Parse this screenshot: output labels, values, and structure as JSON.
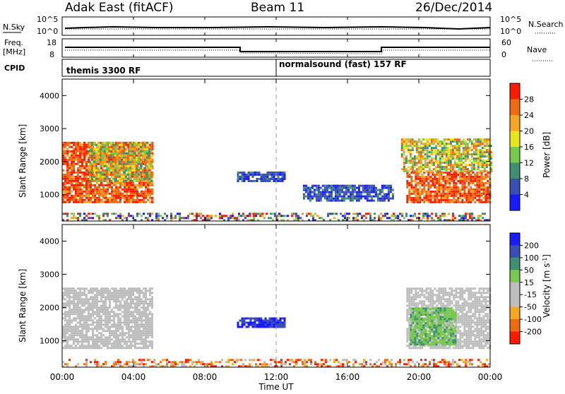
{
  "header": {
    "station": "Adak East (fitACF)",
    "beam": "Beam 11",
    "date": "26/Dec/2014"
  },
  "noise_panel": {
    "left_label": "N.Sky",
    "right_label": "N.Search",
    "left_ticks": [
      "10^5",
      "10^0"
    ],
    "right_ticks": [
      "10^5",
      "10^0"
    ]
  },
  "freq_panel": {
    "left_label_1": "Freq.",
    "left_label_2": "[MHz]",
    "left_ticks": [
      "18",
      "8"
    ],
    "right_label": "Nave",
    "right_ticks": [
      "60",
      "0"
    ]
  },
  "cpid_panel": {
    "label": "CPID",
    "programs": [
      {
        "name": "themis 3300 RF",
        "start_hour": 0
      },
      {
        "name": "normalsound (fast) 157 RF",
        "start_hour": 12
      }
    ]
  },
  "colors": {
    "power_scale": [
      "#1a1aff",
      "#3a4fb5",
      "#3f8f70",
      "#78c850",
      "#e6e61a",
      "#f5a623",
      "#f06a10",
      "#ff1a00"
    ],
    "velocity_scale": [
      "#ff1a00",
      "#f06a10",
      "#f5a623",
      "#bdbdbd",
      "#bdbdbd",
      "#78c850",
      "#3f8f70",
      "#3a4fb5",
      "#1a1aff"
    ],
    "ground_scatter": "#bdbdbd",
    "axis": "#000000"
  },
  "chart_data": [
    {
      "type": "heatmap",
      "title": "",
      "xlabel": "Time UT",
      "ylabel": "Slant Range [km]",
      "xlim": [
        0,
        24
      ],
      "ylim": [
        200,
        4500
      ],
      "x_ticks": [
        "00:00",
        "04:00",
        "08:00",
        "12:00",
        "16:00",
        "20:00",
        "00:00"
      ],
      "y_ticks": [
        1000,
        2000,
        3000,
        4000
      ],
      "colorbar": {
        "label": "Power [dB]",
        "ticks": [
          4,
          8,
          12,
          16,
          20,
          24,
          28
        ],
        "range": [
          0,
          32
        ]
      },
      "regions": [
        {
          "t0": 0.0,
          "t1": 5.0,
          "r0": 800,
          "r1": 2600,
          "level": "high"
        },
        {
          "t0": 1.5,
          "t1": 5.0,
          "r0": 1400,
          "r1": 2600,
          "level": "medium"
        },
        {
          "t0": 19.3,
          "t1": 24.0,
          "r0": 800,
          "r1": 1700,
          "level": "high"
        },
        {
          "t0": 19.0,
          "t1": 24.0,
          "r0": 1700,
          "r1": 2700,
          "level": "medium"
        },
        {
          "t0": 9.8,
          "t1": 12.5,
          "r0": 1400,
          "r1": 1700,
          "level": "low"
        },
        {
          "t0": 13.5,
          "t1": 18.5,
          "r0": 850,
          "r1": 1300,
          "level": "low"
        },
        {
          "t0": 0.0,
          "t1": 24.0,
          "r0": 200,
          "r1": 450,
          "level": "noise"
        }
      ]
    },
    {
      "type": "heatmap",
      "title": "",
      "xlabel": "Time UT",
      "ylabel": "Slant Range [km]",
      "xlim": [
        0,
        24
      ],
      "ylim": [
        200,
        4500
      ],
      "x_ticks": [
        "00:00",
        "04:00",
        "08:00",
        "12:00",
        "16:00",
        "20:00",
        "00:00"
      ],
      "y_ticks": [
        1000,
        2000,
        3000,
        4000
      ],
      "colorbar": {
        "label": "Velocity [m s-1]",
        "ticks": [
          200,
          100,
          50,
          15,
          -15,
          -50,
          -100,
          -200
        ],
        "range": [
          -250,
          250
        ]
      },
      "regions": [
        {
          "t0": 0.0,
          "t1": 5.0,
          "r0": 800,
          "r1": 2600,
          "level": "ground"
        },
        {
          "t0": 19.3,
          "t1": 24.0,
          "r0": 800,
          "r1": 2600,
          "level": "ground"
        },
        {
          "t0": 19.5,
          "t1": 22.0,
          "r0": 900,
          "r1": 2000,
          "level": "positive"
        },
        {
          "t0": 9.8,
          "t1": 12.5,
          "r0": 1400,
          "r1": 1700,
          "level": "positive_high"
        },
        {
          "t0": 0.0,
          "t1": 24.0,
          "r0": 200,
          "r1": 450,
          "level": "negative"
        }
      ]
    }
  ]
}
